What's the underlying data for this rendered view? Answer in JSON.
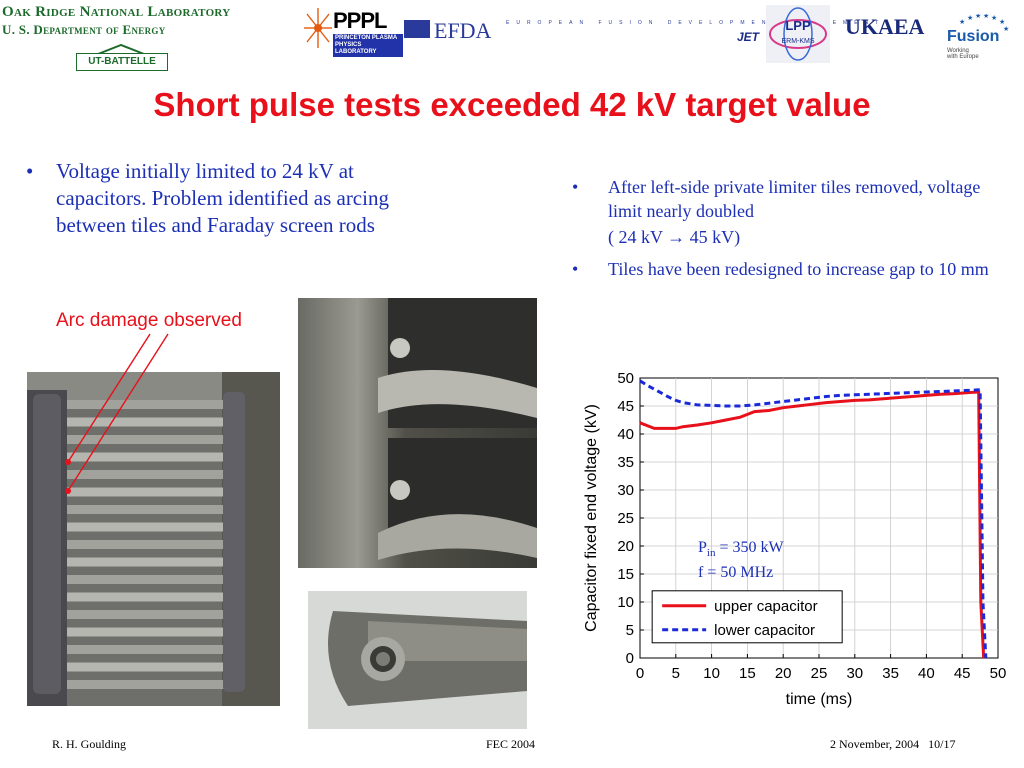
{
  "header": {
    "ornl_line1": "Oak Ridge National Laboratory",
    "ornl_line2": "U. S. Department of Energy",
    "ut_battelle": "UT-BATTELLE",
    "pppl": "PPPL",
    "pppl_sub": "PRINCETON PLASMA PHYSICS LABORATORY",
    "efda": "EFDA",
    "efda_long": "EUROPEAN FUSION DEVELOPMENT AGREEMENT",
    "jet": "JET",
    "lpp": "LPP",
    "lpp_sub": "ERM-KMS",
    "ukaea": "UKAEA",
    "fusion": "Fusion",
    "fusion_sub1": "Working",
    "fusion_sub2": "with Europe"
  },
  "title": "Short pulse tests exceeded 42 kV target value",
  "left_bullets": [
    "Voltage initially limited to 24 kV at capacitors. Problem identified as arcing between tiles and Faraday screen rods"
  ],
  "arc_label": "Arc damage observed",
  "right_bullets": [
    {
      "text": "After left-side private limiter tiles removed, voltage limit nearly doubled",
      "sub": "( 24 kV → 45 kV)"
    },
    {
      "text": "Tiles have been redesigned to increase gap to 10 mm"
    }
  ],
  "annotation": {
    "pin_label": "P",
    "pin_sub": "in",
    "pin_value": " = 350 kW",
    "freq": "f = 50 MHz"
  },
  "chart_data": {
    "type": "line",
    "xlabel": "time (ms)",
    "ylabel": "Capacitor fixed end voltage (kV)",
    "xlim": [
      0,
      50
    ],
    "ylim": [
      0,
      50
    ],
    "xticks": [
      0,
      5,
      10,
      15,
      20,
      25,
      30,
      35,
      40,
      45,
      50
    ],
    "yticks": [
      0,
      5,
      10,
      15,
      20,
      25,
      30,
      35,
      40,
      45,
      50
    ],
    "grid": true,
    "legend_position": "bottom-left",
    "series": [
      {
        "name": "upper capacitor",
        "color": "#e8101a",
        "style": "solid",
        "x": [
          0,
          1,
          2,
          3,
          4,
          5,
          6,
          8,
          10,
          12,
          14,
          15,
          16,
          18,
          20,
          22,
          24,
          26,
          28,
          30,
          32,
          34,
          36,
          38,
          40,
          42,
          44,
          46,
          47.3,
          47.6,
          48.0
        ],
        "y": [
          42,
          41.5,
          41,
          41,
          41,
          41,
          41.3,
          41.6,
          42,
          42.5,
          43,
          43.5,
          44,
          44.2,
          44.7,
          45,
          45.3,
          45.6,
          45.8,
          46,
          46.1,
          46.3,
          46.5,
          46.7,
          46.9,
          47.1,
          47.2,
          47.4,
          47.5,
          10,
          0
        ]
      },
      {
        "name": "lower capacitor",
        "color": "#1a2ad8",
        "style": "dashed",
        "x": [
          0,
          1,
          2,
          3,
          4,
          5,
          6,
          8,
          10,
          12,
          14,
          16,
          18,
          20,
          22,
          24,
          26,
          28,
          30,
          32,
          34,
          36,
          38,
          40,
          42,
          44,
          46,
          47.5,
          47.9,
          48.3
        ],
        "y": [
          49.5,
          48.7,
          48,
          47.3,
          46.6,
          46,
          45.6,
          45.2,
          45.1,
          45,
          45,
          45.2,
          45.5,
          45.8,
          46.1,
          46.4,
          46.7,
          46.9,
          47,
          47.1,
          47.2,
          47.3,
          47.4,
          47.5,
          47.6,
          47.7,
          47.8,
          47.9,
          10,
          0
        ]
      }
    ]
  },
  "footer": {
    "author": "R. H. Goulding",
    "conference": "FEC 2004",
    "date_page": "2 November, 2004   10/17"
  }
}
